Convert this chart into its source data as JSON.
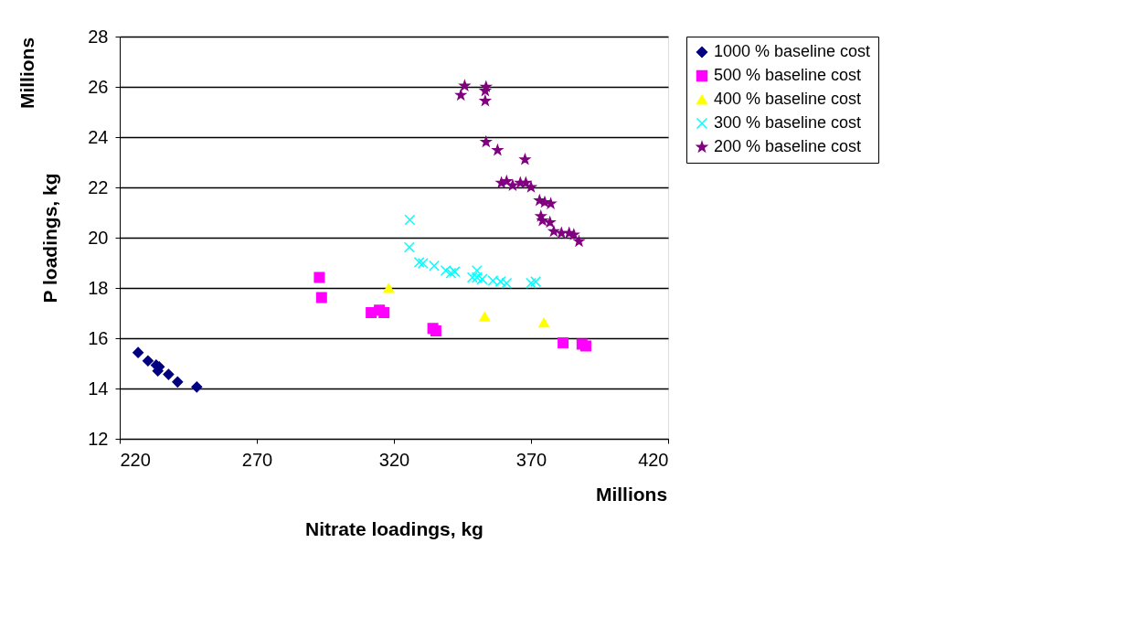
{
  "chart_data": {
    "type": "scatter",
    "xlabel": "Nitrate loadings, kg",
    "ylabel": "P loadings, kg",
    "annotations": [
      "Millions",
      "Millions"
    ],
    "xlim": [
      220,
      420
    ],
    "xticks": [
      220,
      270,
      320,
      370,
      420
    ],
    "ylim": [
      12,
      28
    ],
    "yticks": [
      12,
      14,
      16,
      18,
      20,
      22,
      24,
      26,
      28
    ],
    "grid": "y",
    "legend": "right",
    "series": [
      {
        "name": "1000 % baseline cost",
        "color": "#000080",
        "marker": "diamond",
        "x": [
          226.7,
          230.3,
          233.3,
          233.9,
          234.4,
          237.8,
          241.1,
          248.1
        ],
        "values": [
          15.43,
          15.1,
          14.93,
          14.7,
          14.86,
          14.56,
          14.26,
          14.06
        ]
      },
      {
        "name": "500 % baseline cost",
        "color": "#ff00ff",
        "marker": "square",
        "x": [
          292.8,
          293.6,
          311.7,
          314.7,
          316.4,
          334.2,
          335.3,
          381.7,
          388.6,
          390.0
        ],
        "values": [
          18.42,
          17.62,
          17.02,
          17.12,
          17.02,
          16.39,
          16.29,
          15.82,
          15.76,
          15.69
        ]
      },
      {
        "name": "400 % baseline cost",
        "color": "#ffff00",
        "marker": "triangle",
        "x": [
          318.1,
          353.1,
          374.7
        ],
        "values": [
          17.99,
          16.86,
          16.62
        ]
      },
      {
        "name": "300 % baseline cost",
        "color": "#00ffff",
        "marker": "cross",
        "x": [
          325.8,
          325.6,
          329.2,
          330.6,
          334.7,
          338.9,
          340.8,
          342.2,
          348.6,
          350.3,
          350.3,
          352.2,
          356.1,
          358.9,
          361.1,
          370.0,
          371.7
        ],
        "values": [
          20.71,
          19.62,
          19.02,
          18.98,
          18.88,
          18.69,
          18.59,
          18.65,
          18.42,
          18.69,
          18.42,
          18.35,
          18.29,
          18.25,
          18.19,
          18.19,
          18.25
        ]
      },
      {
        "name": "200 % baseline cost",
        "color": "#800080",
        "marker": "star",
        "x": [
          344.4,
          345.8,
          353.3,
          353.6,
          353.3,
          353.6,
          357.8,
          367.8,
          359.2,
          361.1,
          363.3,
          366.1,
          368.1,
          370.0,
          373.1,
          375.0,
          377.2,
          373.6,
          374.2,
          376.9,
          378.3,
          381.1,
          383.9,
          385.6,
          387.5
        ],
        "values": [
          25.67,
          26.04,
          25.84,
          26.0,
          25.44,
          23.81,
          23.48,
          23.11,
          22.18,
          22.24,
          22.08,
          22.18,
          22.18,
          22.01,
          21.48,
          21.41,
          21.35,
          20.85,
          20.68,
          20.61,
          20.25,
          20.18,
          20.18,
          20.12,
          19.85
        ]
      }
    ]
  }
}
